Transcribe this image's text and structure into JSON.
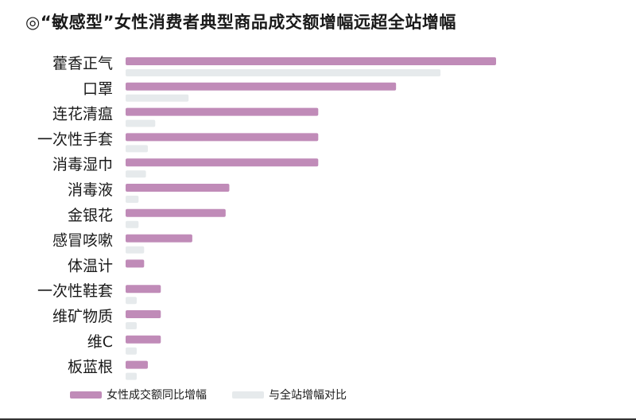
{
  "colors": {
    "female": "#c08bb8",
    "site": "#e6eaec"
  },
  "chart_data": {
    "type": "bar",
    "orientation": "horizontal",
    "title": "◎“敏感型”女性消费者典型商品成交额增幅远超全站增幅",
    "categories": [
      "藿香正气",
      "口罩",
      "连花清瘟",
      "一次性手套",
      "消毒湿巾",
      "消毒液",
      "金银花",
      "感冒咳嗽",
      "体温计",
      "一次性鞋套",
      "维矿物质",
      "维C",
      "板蓝根"
    ],
    "series": [
      {
        "name": "女性成交额同比增幅",
        "color": "#c08bb8",
        "values": [
          100,
          73,
          52,
          52,
          52,
          28,
          27,
          18,
          5,
          9.5,
          9.5,
          9.5,
          6
        ]
      },
      {
        "name": "与全站增幅对比",
        "color": "#e6eaec",
        "values": [
          85,
          17,
          8,
          6,
          5.5,
          3.5,
          3.5,
          5,
          0,
          3,
          3,
          3,
          3
        ]
      }
    ],
    "legend_position": "bottom",
    "grid": false,
    "axes_visible": false
  }
}
